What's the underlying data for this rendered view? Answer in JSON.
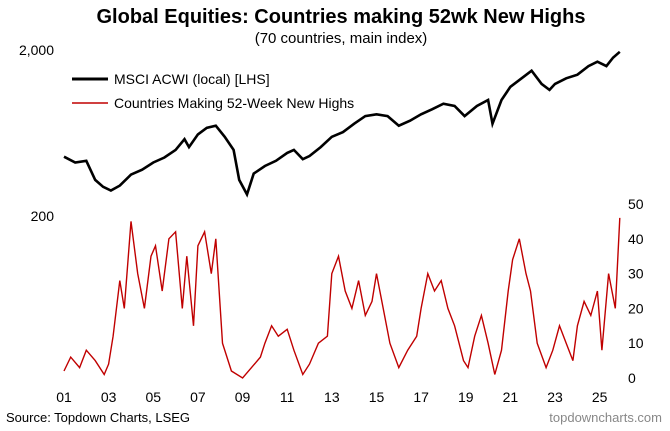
{
  "chart_data": {
    "type": "line",
    "title": "Global Equities: Countries making 52wk New Highs",
    "subtitle": "(70 countries, main index)",
    "left_axis": {
      "scale": "log",
      "ticks": [
        "2,000",
        "200"
      ],
      "tick_values": [
        2000,
        200
      ]
    },
    "right_axis": {
      "range": [
        0,
        50
      ],
      "ticks": [
        "50",
        "40",
        "30",
        "20",
        "10",
        "0"
      ],
      "tick_values": [
        50,
        40,
        30,
        20,
        10,
        0
      ]
    },
    "x_ticks": [
      "01",
      "03",
      "05",
      "07",
      "09",
      "11",
      "13",
      "15",
      "17",
      "19",
      "21",
      "23",
      "25"
    ],
    "x_tick_years": [
      2001,
      2003,
      2005,
      2007,
      2009,
      2011,
      2013,
      2015,
      2017,
      2019,
      2021,
      2023,
      2025
    ],
    "legend_position": "top-left",
    "series": [
      {
        "name": "MSCI ACWI (local) [LHS]",
        "axis": "left",
        "color": "#000000",
        "x": [
          2001.0,
          2001.5,
          2002.0,
          2002.4,
          2002.75,
          2003.1,
          2003.5,
          2004.0,
          2004.5,
          2005.0,
          2005.5,
          2006.0,
          2006.4,
          2006.6,
          2007.0,
          2007.4,
          2007.8,
          2008.2,
          2008.6,
          2008.85,
          2009.2,
          2009.5,
          2010.0,
          2010.5,
          2011.0,
          2011.3,
          2011.7,
          2012.0,
          2012.5,
          2013.0,
          2013.5,
          2014.0,
          2014.5,
          2015.0,
          2015.5,
          2016.0,
          2016.5,
          2017.0,
          2017.5,
          2018.0,
          2018.5,
          2018.95,
          2019.5,
          2020.0,
          2020.2,
          2020.6,
          2021.0,
          2021.5,
          2021.95,
          2022.4,
          2022.75,
          2023.0,
          2023.5,
          2024.0,
          2024.5,
          2024.9,
          2025.3,
          2025.6,
          2025.9
        ],
        "values": [
          455,
          420,
          430,
          330,
          300,
          285,
          305,
          355,
          380,
          420,
          450,
          500,
          580,
          520,
          620,
          680,
          700,
          600,
          500,
          330,
          270,
          360,
          400,
          430,
          480,
          500,
          440,
          460,
          520,
          600,
          640,
          720,
          800,
          820,
          800,
          700,
          750,
          820,
          880,
          950,
          920,
          800,
          920,
          1000,
          720,
          1000,
          1200,
          1350,
          1500,
          1250,
          1150,
          1250,
          1350,
          1420,
          1600,
          1700,
          1600,
          1800,
          1950
        ]
      },
      {
        "name": "Countries Making 52-Week New Highs",
        "axis": "right",
        "color": "#C00000",
        "x": [
          2001.0,
          2001.3,
          2001.7,
          2002.0,
          2002.4,
          2002.8,
          2003.0,
          2003.2,
          2003.5,
          2003.7,
          2004.0,
          2004.3,
          2004.6,
          2004.9,
          2005.1,
          2005.4,
          2005.7,
          2006.0,
          2006.3,
          2006.5,
          2006.8,
          2007.0,
          2007.3,
          2007.6,
          2007.8,
          2008.1,
          2008.5,
          2009.0,
          2009.4,
          2009.8,
          2010.0,
          2010.3,
          2010.6,
          2011.0,
          2011.3,
          2011.7,
          2012.0,
          2012.4,
          2012.8,
          2013.0,
          2013.3,
          2013.6,
          2013.9,
          2014.2,
          2014.5,
          2014.8,
          2015.0,
          2015.3,
          2015.6,
          2016.0,
          2016.4,
          2016.8,
          2017.0,
          2017.3,
          2017.6,
          2017.9,
          2018.2,
          2018.5,
          2018.9,
          2019.1,
          2019.4,
          2019.7,
          2020.0,
          2020.3,
          2020.6,
          2020.9,
          2021.1,
          2021.4,
          2021.7,
          2021.9,
          2022.2,
          2022.6,
          2022.9,
          2023.2,
          2023.5,
          2023.8,
          2024.0,
          2024.3,
          2024.6,
          2024.9,
          2025.1,
          2025.4,
          2025.7,
          2025.9
        ],
        "values": [
          2,
          6,
          3,
          8,
          5,
          1,
          4,
          12,
          28,
          20,
          45,
          30,
          20,
          35,
          38,
          25,
          40,
          42,
          20,
          35,
          15,
          38,
          42,
          30,
          40,
          10,
          2,
          0,
          3,
          6,
          10,
          15,
          12,
          14,
          8,
          1,
          4,
          10,
          12,
          30,
          35,
          25,
          20,
          28,
          18,
          22,
          30,
          20,
          10,
          3,
          8,
          12,
          20,
          30,
          25,
          28,
          20,
          15,
          5,
          3,
          12,
          18,
          10,
          1,
          8,
          25,
          34,
          40,
          30,
          25,
          10,
          3,
          8,
          15,
          10,
          5,
          15,
          22,
          18,
          25,
          8,
          30,
          20,
          46
        ]
      }
    ],
    "source": "Source: Topdown Charts, LSEG",
    "watermark": "topdowncharts.com"
  }
}
